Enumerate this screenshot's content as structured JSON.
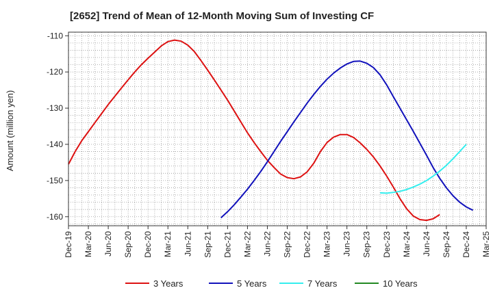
{
  "chart_data": {
    "type": "line",
    "title": "[2652]  Trend of Mean of 12-Month Moving Sum of Investing CF",
    "ylabel": "Amount (million yen)",
    "xlabel": "",
    "ylim": [
      -162.5,
      -109
    ],
    "yticks": [
      -110,
      -120,
      -130,
      -140,
      -150,
      -160
    ],
    "x_tick_labels": [
      "Dec-19",
      "Mar-20",
      "Jun-20",
      "Sep-20",
      "Dec-20",
      "Mar-21",
      "Jun-21",
      "Sep-21",
      "Dec-21",
      "Mar-22",
      "Jun-22",
      "Sep-22",
      "Dec-22",
      "Mar-23",
      "Jun-23",
      "Sep-23",
      "Dec-23",
      "Mar-24",
      "Jun-24",
      "Sep-24",
      "Dec-24",
      "Mar-25"
    ],
    "grid": true,
    "legend_position": "bottom",
    "series": [
      {
        "name": "3 Years",
        "color": "#dd1111",
        "points": [
          [
            "Dec-19",
            -145.5
          ],
          [
            "Jan-20",
            -142
          ],
          [
            "Feb-20",
            -139
          ],
          [
            "Mar-20",
            -136.5
          ],
          [
            "Apr-20",
            -134
          ],
          [
            "May-20",
            -131.5
          ],
          [
            "Jun-20",
            -129
          ],
          [
            "Jul-20",
            -126.7
          ],
          [
            "Aug-20",
            -124.4
          ],
          [
            "Sep-20",
            -122.2
          ],
          [
            "Oct-20",
            -120
          ],
          [
            "Nov-20",
            -118
          ],
          [
            "Dec-20",
            -116.2
          ],
          [
            "Jan-21",
            -114.5
          ],
          [
            "Feb-21",
            -112.8
          ],
          [
            "Mar-21",
            -111.6
          ],
          [
            "Apr-21",
            -111.2
          ],
          [
            "May-21",
            -111.5
          ],
          [
            "Jun-21",
            -112.6
          ],
          [
            "Jul-21",
            -114.4
          ],
          [
            "Aug-21",
            -116.9
          ],
          [
            "Sep-21",
            -119.5
          ],
          [
            "Oct-21",
            -122.2
          ],
          [
            "Nov-21",
            -125
          ],
          [
            "Dec-21",
            -127.8
          ],
          [
            "Jan-22",
            -130.8
          ],
          [
            "Feb-22",
            -133.8
          ],
          [
            "Mar-22",
            -136.8
          ],
          [
            "Apr-22",
            -139.5
          ],
          [
            "May-22",
            -142
          ],
          [
            "Jun-22",
            -144.4
          ],
          [
            "Jul-22",
            -146.4
          ],
          [
            "Aug-22",
            -148.2
          ],
          [
            "Sep-22",
            -149.2
          ],
          [
            "Oct-22",
            -149.5
          ],
          [
            "Nov-22",
            -149
          ],
          [
            "Dec-22",
            -147.6
          ],
          [
            "Jan-23",
            -145.2
          ],
          [
            "Feb-23",
            -142
          ],
          [
            "Mar-23",
            -139.5
          ],
          [
            "Apr-23",
            -138
          ],
          [
            "May-23",
            -137.3
          ],
          [
            "Jun-23",
            -137.3
          ],
          [
            "Jul-23",
            -138.1
          ],
          [
            "Aug-23",
            -139.6
          ],
          [
            "Sep-23",
            -141.4
          ],
          [
            "Oct-23",
            -143.5
          ],
          [
            "Nov-23",
            -146
          ],
          [
            "Dec-23",
            -148.8
          ],
          [
            "Jan-24",
            -151.8
          ],
          [
            "Feb-24",
            -155
          ],
          [
            "Mar-24",
            -157.8
          ],
          [
            "Apr-24",
            -159.8
          ],
          [
            "May-24",
            -160.8
          ],
          [
            "Jun-24",
            -161
          ],
          [
            "Jul-24",
            -160.6
          ],
          [
            "Aug-24",
            -159.4
          ]
        ]
      },
      {
        "name": "5 Years",
        "color": "#1111bb",
        "points": [
          [
            "Nov-21",
            -160.3
          ],
          [
            "Dec-21",
            -158.6
          ],
          [
            "Jan-22",
            -156.7
          ],
          [
            "Feb-22",
            -154.6
          ],
          [
            "Mar-22",
            -152.4
          ],
          [
            "Apr-22",
            -150
          ],
          [
            "May-22",
            -147.5
          ],
          [
            "Jun-22",
            -144.8
          ],
          [
            "Jul-22",
            -142
          ],
          [
            "Aug-22",
            -139.2
          ],
          [
            "Sep-22",
            -136.5
          ],
          [
            "Oct-22",
            -133.8
          ],
          [
            "Nov-22",
            -131.2
          ],
          [
            "Dec-22",
            -128.6
          ],
          [
            "Jan-23",
            -126.2
          ],
          [
            "Feb-23",
            -124
          ],
          [
            "Mar-23",
            -122
          ],
          [
            "Apr-23",
            -120.3
          ],
          [
            "May-23",
            -118.9
          ],
          [
            "Jun-23",
            -117.8
          ],
          [
            "Jul-23",
            -117.1
          ],
          [
            "Aug-23",
            -117
          ],
          [
            "Sep-23",
            -117.6
          ],
          [
            "Oct-23",
            -118.8
          ],
          [
            "Nov-23",
            -120.8
          ],
          [
            "Dec-23",
            -123.6
          ],
          [
            "Jan-24",
            -126.8
          ],
          [
            "Feb-24",
            -130
          ],
          [
            "Mar-24",
            -133.2
          ],
          [
            "Apr-24",
            -136.4
          ],
          [
            "May-24",
            -139.7
          ],
          [
            "Jun-24",
            -143
          ],
          [
            "Jul-24",
            -146.4
          ],
          [
            "Aug-24",
            -149.4
          ],
          [
            "Sep-24",
            -152
          ],
          [
            "Oct-24",
            -154.2
          ],
          [
            "Nov-24",
            -156
          ],
          [
            "Dec-24",
            -157.3
          ],
          [
            "Jan-25",
            -158.2
          ]
        ]
      },
      {
        "name": "7 Years",
        "color": "#33eeee",
        "points": [
          [
            "Nov-23",
            -153.4
          ],
          [
            "Dec-23",
            -153.5
          ],
          [
            "Jan-24",
            -153.3
          ],
          [
            "Feb-24",
            -153
          ],
          [
            "Mar-24",
            -152.5
          ],
          [
            "Apr-24",
            -151.8
          ],
          [
            "May-24",
            -151
          ],
          [
            "Jun-24",
            -150
          ],
          [
            "Jul-24",
            -148.8
          ],
          [
            "Aug-24",
            -147.4
          ],
          [
            "Sep-24",
            -145.8
          ],
          [
            "Oct-24",
            -144
          ],
          [
            "Nov-24",
            -142
          ],
          [
            "Dec-24",
            -140
          ]
        ]
      },
      {
        "name": "10 Years",
        "color": "#228822",
        "points": []
      }
    ]
  }
}
